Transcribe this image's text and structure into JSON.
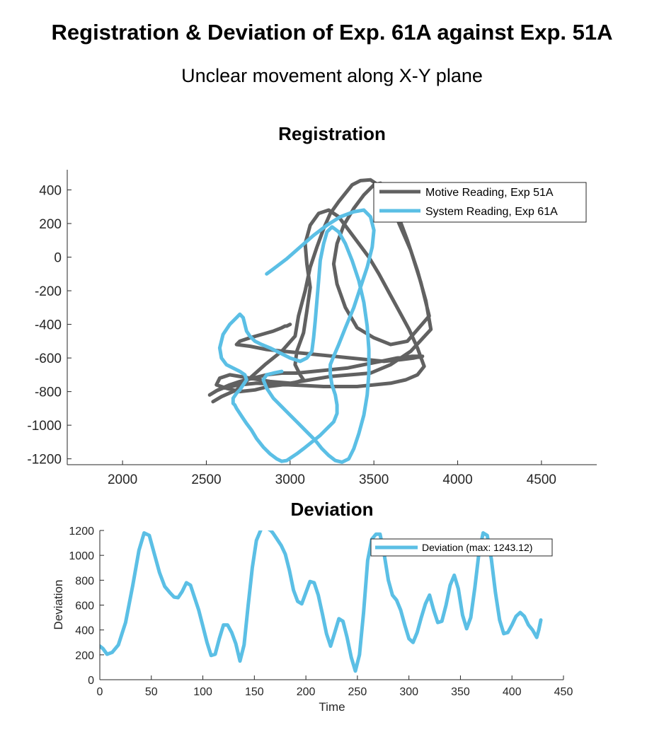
{
  "figure": {
    "title": "Registration & Deviation of Exp. 61A against Exp. 51A",
    "subtitle": "Unclear movement along X-Y plane"
  },
  "chart_data": [
    {
      "type": "line",
      "title": "Registration",
      "xlabel": "",
      "ylabel": "",
      "xlim": [
        1670,
        4830
      ],
      "ylim": [
        -1235,
        520
      ],
      "xticks": [
        2000,
        2500,
        3000,
        3500,
        4000,
        4500
      ],
      "yticks": [
        -1200,
        -1000,
        -800,
        -600,
        -400,
        -200,
        0,
        200,
        400
      ],
      "legend_position": "top-right",
      "series": [
        {
          "name": "Motive Reading, Exp 51A",
          "color": "#616161",
          "x": [
            2540,
            2590,
            2680,
            2760,
            2850,
            2950,
            3030,
            3050,
            3090,
            3120,
            3160,
            3200,
            3240,
            3290,
            3330,
            3370,
            3420,
            3480,
            3540,
            3600,
            3650,
            3720,
            3780,
            3830,
            3700,
            3600,
            3500,
            3400,
            3330,
            3280,
            3260,
            3280,
            3320,
            3380,
            3440,
            3500,
            3540,
            3590,
            3640,
            3700,
            3760,
            3810,
            3840,
            3720,
            3600,
            3480,
            3360,
            3240,
            3120,
            3000,
            2880,
            2760,
            2640,
            2580,
            2560,
            2620,
            2700,
            2790,
            2870,
            2950,
            3010,
            3050,
            3080,
            3060,
            3030,
            3040,
            3080,
            3100,
            3120,
            3100,
            3090,
            3120,
            3170,
            3230,
            3290,
            3350,
            3410,
            3470,
            3530,
            3590,
            3650,
            3710,
            3760,
            3800,
            3760,
            3690,
            3600,
            3500,
            3400,
            3300,
            3200,
            3100,
            3000,
            2900,
            2800,
            2700,
            2610,
            2560,
            2520,
            2570,
            2640,
            2700,
            2780,
            2860,
            2950,
            3040,
            3140,
            3240,
            3340,
            3440,
            3540,
            3640,
            3730,
            3790,
            3740,
            3660,
            3560,
            3460,
            3360,
            3260,
            3160,
            3060,
            2960,
            2860,
            2760,
            2680,
            2700,
            2760,
            2830,
            2900,
            2950,
            2970,
            2980,
            3000
          ],
          "y": [
            -860,
            -830,
            -790,
            -720,
            -640,
            -560,
            -470,
            -350,
            -200,
            -60,
            60,
            170,
            260,
            330,
            380,
            430,
            455,
            460,
            420,
            330,
            200,
            40,
            -150,
            -350,
            -500,
            -520,
            -480,
            -420,
            -300,
            -160,
            -40,
            80,
            190,
            290,
            370,
            430,
            440,
            380,
            260,
            100,
            -80,
            -260,
            -430,
            -560,
            -640,
            -690,
            -700,
            -710,
            -730,
            -750,
            -740,
            -720,
            -700,
            -720,
            -760,
            -780,
            -800,
            -790,
            -770,
            -760,
            -750,
            -740,
            -730,
            -700,
            -640,
            -560,
            -450,
            -320,
            -180,
            -40,
            80,
            190,
            260,
            280,
            240,
            160,
            80,
            0,
            -100,
            -210,
            -320,
            -430,
            -540,
            -650,
            -700,
            -730,
            -750,
            -760,
            -770,
            -770,
            -770,
            -765,
            -760,
            -755,
            -750,
            -760,
            -775,
            -795,
            -820,
            -790,
            -760,
            -740,
            -720,
            -700,
            -690,
            -690,
            -680,
            -670,
            -660,
            -640,
            -620,
            -600,
            -590,
            -590,
            -600,
            -610,
            -620,
            -610,
            -600,
            -590,
            -580,
            -570,
            -560,
            -550,
            -530,
            -520,
            -500,
            -480,
            -460,
            -440,
            -420,
            -410,
            -410,
            -400
          ]
        },
        {
          "name": "System Reading, Exp 61A",
          "color": "#5BBFE5",
          "x": [
            2860,
            2900,
            2980,
            3060,
            3140,
            3220,
            3300,
            3380,
            3440,
            3480,
            3500,
            3490,
            3460,
            3420,
            3380,
            3330,
            3290,
            3260,
            3240,
            3240,
            3250,
            3270,
            3280,
            3280,
            3260,
            3220,
            3180,
            3130,
            3080,
            3040,
            3010,
            2980,
            2950,
            2920,
            2880,
            2840,
            2800,
            2770,
            2740,
            2720,
            2700,
            2680,
            2670,
            2660,
            2660,
            2680,
            2700,
            2720,
            2740,
            2730,
            2700,
            2660,
            2620,
            2590,
            2580,
            2600,
            2640,
            2680,
            2700,
            2720,
            2730,
            2740,
            2760,
            2790,
            2830,
            2880,
            2940,
            3000,
            3060,
            3100,
            3130,
            3140,
            3150,
            3160,
            3170,
            3180,
            3200,
            3220,
            3250,
            3290,
            3330,
            3370,
            3410,
            3440,
            3460,
            3470,
            3470,
            3460,
            3440,
            3410,
            3380,
            3350,
            3310,
            3270,
            3230,
            3190,
            3150,
            3100,
            3050,
            3000,
            2950,
            2900,
            2860,
            2840,
            2860,
            2900,
            2950
          ],
          "y": [
            -100,
            -70,
            -10,
            60,
            130,
            190,
            240,
            270,
            280,
            240,
            160,
            60,
            -60,
            -180,
            -300,
            -420,
            -520,
            -590,
            -640,
            -700,
            -760,
            -820,
            -880,
            -930,
            -980,
            -1020,
            -1060,
            -1100,
            -1140,
            -1170,
            -1190,
            -1210,
            -1215,
            -1200,
            -1170,
            -1130,
            -1080,
            -1030,
            -990,
            -960,
            -930,
            -900,
            -880,
            -870,
            -840,
            -810,
            -790,
            -760,
            -730,
            -700,
            -680,
            -660,
            -640,
            -600,
            -540,
            -460,
            -400,
            -360,
            -340,
            -360,
            -400,
            -440,
            -470,
            -500,
            -520,
            -540,
            -570,
            -600,
            -620,
            -600,
            -560,
            -480,
            -380,
            -260,
            -140,
            -20,
            80,
            150,
            180,
            150,
            80,
            -20,
            -140,
            -270,
            -410,
            -550,
            -690,
            -820,
            -940,
            -1050,
            -1140,
            -1200,
            -1220,
            -1210,
            -1180,
            -1140,
            -1090,
            -1040,
            -990,
            -940,
            -890,
            -840,
            -780,
            -730,
            -700,
            -690,
            -680
          ]
        }
      ]
    },
    {
      "type": "line",
      "title": "Deviation",
      "xlabel": "Time",
      "ylabel": "Deviation",
      "xlim": [
        0,
        450
      ],
      "ylim": [
        0,
        1200
      ],
      "xticks": [
        0,
        50,
        100,
        150,
        200,
        250,
        300,
        350,
        400,
        450
      ],
      "yticks": [
        0,
        200,
        400,
        600,
        800,
        1000,
        1200
      ],
      "legend_position": "top-right",
      "series": [
        {
          "name": "Deviation (max: 1243.12)",
          "color": "#5BBFE5",
          "x": [
            0,
            3,
            7,
            12,
            18,
            25,
            32,
            38,
            43,
            48,
            53,
            58,
            63,
            68,
            72,
            76,
            80,
            84,
            88,
            92,
            96,
            100,
            104,
            108,
            112,
            116,
            120,
            124,
            128,
            132,
            136,
            140,
            144,
            148,
            152,
            156,
            158,
            160,
            162,
            164,
            166,
            168,
            172,
            176,
            180,
            184,
            188,
            192,
            196,
            200,
            204,
            208,
            212,
            216,
            220,
            224,
            228,
            232,
            236,
            240,
            244,
            248,
            252,
            256,
            260,
            264,
            268,
            272,
            276,
            280,
            284,
            288,
            292,
            296,
            300,
            304,
            308,
            312,
            316,
            320,
            324,
            328,
            332,
            336,
            340,
            344,
            348,
            352,
            356,
            360,
            364,
            368,
            372,
            376,
            380,
            384,
            388,
            392,
            396,
            400,
            404,
            408,
            412,
            416,
            420,
            424,
            426,
            428
          ],
          "y": [
            270,
            250,
            205,
            220,
            280,
            460,
            760,
            1040,
            1180,
            1160,
            1010,
            860,
            750,
            700,
            665,
            660,
            710,
            780,
            760,
            660,
            560,
            430,
            300,
            195,
            205,
            330,
            440,
            440,
            380,
            290,
            150,
            280,
            600,
            900,
            1120,
            1200,
            1260,
            1260,
            1240,
            1210,
            1200,
            1180,
            1130,
            1080,
            1010,
            880,
            720,
            630,
            610,
            700,
            790,
            780,
            680,
            530,
            370,
            270,
            380,
            490,
            470,
            340,
            180,
            70,
            200,
            540,
            960,
            1130,
            1170,
            1170,
            1010,
            800,
            680,
            640,
            560,
            440,
            330,
            300,
            380,
            500,
            610,
            680,
            560,
            460,
            470,
            600,
            760,
            840,
            730,
            520,
            410,
            500,
            740,
            1020,
            1180,
            1160,
            970,
            700,
            480,
            370,
            380,
            440,
            510,
            540,
            510,
            440,
            400,
            340,
            400,
            480
          ]
        }
      ]
    }
  ]
}
